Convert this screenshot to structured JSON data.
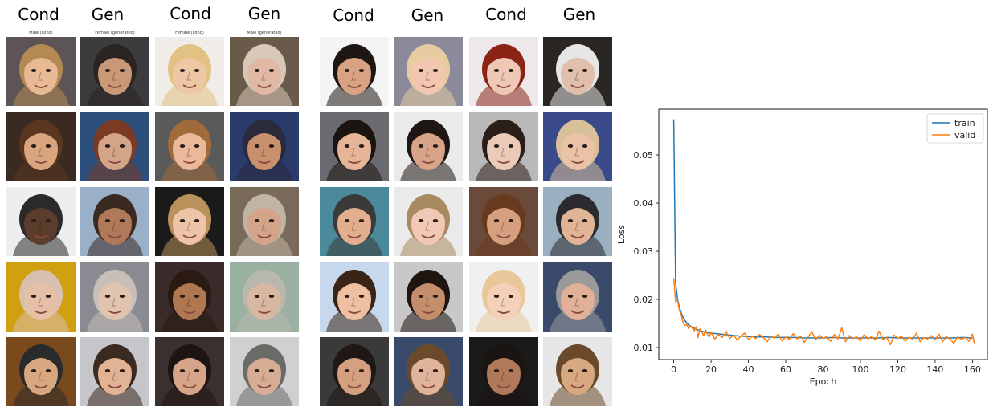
{
  "grids": [
    {
      "headers": [
        "Cond",
        "Gen",
        "Cond",
        "Gen"
      ],
      "subtitles": [
        "Male (cond)",
        "Female (generated)",
        "Female (cond)",
        "Male (generated)"
      ],
      "columns": [
        [
          {
            "skin": "#e7b994",
            "hair": "#b48a52",
            "bg": "#5c5456"
          },
          {
            "skin": "#d9a57e",
            "hair": "#5a3620",
            "bg": "#3a2a22"
          },
          {
            "skin": "#5b3d2c",
            "hair": "#2a2a2a",
            "bg": "#eeeeee"
          },
          {
            "skin": "#e6c0a6",
            "hair": "#d8c0b0",
            "bg": "#d0a010"
          },
          {
            "skin": "#d7a780",
            "hair": "#2b2b2b",
            "bg": "#7a4a1e"
          }
        ],
        [
          {
            "skin": "#c99877",
            "hair": "#2a2522",
            "bg": "#3c3b3e"
          },
          {
            "skin": "#d4a488",
            "hair": "#7a3a24",
            "bg": "#2b4f7a"
          },
          {
            "skin": "#b07a5a",
            "hair": "#3b2a22",
            "bg": "#9ab0c8"
          },
          {
            "skin": "#e0c4b0",
            "hair": "#c8c0b8",
            "bg": "#8a8a92"
          },
          {
            "skin": "#e2b294",
            "hair": "#3a2a22",
            "bg": "#c6c6ca"
          }
        ],
        [
          {
            "skin": "#eec7a4",
            "hair": "#e2c282",
            "bg": "#f0ece8"
          },
          {
            "skin": "#eab99a",
            "hair": "#a06a3a",
            "bg": "#5a5a5a"
          },
          {
            "skin": "#eec4a8",
            "hair": "#b8925a",
            "bg": "#1a1a1a"
          },
          {
            "skin": "#b07850",
            "hair": "#2a1a12",
            "bg": "#3a2a2a"
          },
          {
            "skin": "#d6a488",
            "hair": "#1e1512",
            "bg": "#3a3030"
          }
        ],
        [
          {
            "skin": "#e0b8a4",
            "hair": "#d8c8b8",
            "bg": "#6a5a4a"
          },
          {
            "skin": "#c8906c",
            "hair": "#2a2a3a",
            "bg": "#2a3a6a"
          },
          {
            "skin": "#d4a48a",
            "hair": "#c0b4a4",
            "bg": "#7a6a5a"
          },
          {
            "skin": "#d8b8a0",
            "hair": "#b8b8b0",
            "bg": "#9ab0a0"
          },
          {
            "skin": "#d6ac94",
            "hair": "#6a6a66",
            "bg": "#d0d0d2"
          }
        ]
      ]
    },
    {
      "headers": [
        "Cond",
        "Gen",
        "Cond",
        "Gen"
      ],
      "subtitles": [],
      "columns": [
        [
          {
            "skin": "#d9a283",
            "hair": "#1e1612",
            "bg": "#f4f4f4"
          },
          {
            "skin": "#e6b496",
            "hair": "#1c1410",
            "bg": "#6a6a70"
          },
          {
            "skin": "#e2ae8e",
            "hair": "#3a3a3a",
            "bg": "#4a8a9a"
          },
          {
            "skin": "#eebfa0",
            "hair": "#3a2418",
            "bg": "#c8d8ec"
          },
          {
            "skin": "#d4a080",
            "hair": "#201814",
            "bg": "#3a3a3a"
          }
        ],
        [
          {
            "skin": "#f2c6b0",
            "hair": "#e6cca0",
            "bg": "#8a8a9a"
          },
          {
            "skin": "#d8a488",
            "hair": "#1e1612",
            "bg": "#eaeaea"
          },
          {
            "skin": "#f0c8b4",
            "hair": "#a88a62",
            "bg": "#eaeaea"
          },
          {
            "skin": "#c48e6c",
            "hair": "#1e1410",
            "bg": "#c8c8c8"
          },
          {
            "skin": "#e0b49a",
            "hair": "#6a4a2a",
            "bg": "#3a4a6a"
          }
        ],
        [
          {
            "skin": "#eec8b4",
            "hair": "#8a2416",
            "bg": "#efe8ea"
          },
          {
            "skin": "#eccab8",
            "hair": "#2a1e18",
            "bg": "#b8b8b8"
          },
          {
            "skin": "#d6a080",
            "hair": "#6a3a1e",
            "bg": "#6a4a3a"
          },
          {
            "skin": "#f4d0b8",
            "hair": "#e8c89a",
            "bg": "#f0f0f0"
          },
          {
            "skin": "#b07a5a",
            "hair": "#1a1412",
            "bg": "#1a1a1a"
          }
        ],
        [
          {
            "skin": "#e0c0ac",
            "hair": "#e6e6e6",
            "bg": "#2a2622"
          },
          {
            "skin": "#eac2a6",
            "hair": "#d8c098",
            "bg": "#3a4a8a"
          },
          {
            "skin": "#e2b496",
            "hair": "#2a2a30",
            "bg": "#9ab0c0"
          },
          {
            "skin": "#e0b098",
            "hair": "#9a9a9a",
            "bg": "#3a4a6a"
          },
          {
            "skin": "#d8a880",
            "hair": "#6a4a2a",
            "bg": "#e6e6e6"
          }
        ]
      ]
    }
  ],
  "chart_data": {
    "type": "line",
    "xlabel": "Epoch",
    "ylabel": "Loss",
    "xlim": [
      -8,
      168
    ],
    "ylim": [
      0.0075,
      0.0595
    ],
    "xticks": [
      0,
      20,
      40,
      60,
      80,
      100,
      120,
      140,
      160
    ],
    "yticks": [
      0.01,
      0.02,
      0.03,
      0.04,
      0.05
    ],
    "legend": "top-right",
    "grid": false,
    "series": [
      {
        "name": "train",
        "color": "#1f77b4",
        "points": [
          [
            0,
            0.0574
          ],
          [
            1,
            0.0236
          ],
          [
            2,
            0.0202
          ],
          [
            3,
            0.0184
          ],
          [
            4,
            0.0172
          ],
          [
            5,
            0.0163
          ],
          [
            6,
            0.0156
          ],
          [
            7,
            0.0151
          ],
          [
            8,
            0.0147
          ],
          [
            10,
            0.0142
          ],
          [
            12,
            0.0138
          ],
          [
            15,
            0.0134
          ],
          [
            18,
            0.0131
          ],
          [
            20,
            0.013
          ],
          [
            25,
            0.0128
          ],
          [
            30,
            0.0126
          ],
          [
            35,
            0.0124
          ],
          [
            40,
            0.0123
          ],
          [
            45,
            0.0122
          ],
          [
            50,
            0.0122
          ],
          [
            55,
            0.0121
          ],
          [
            60,
            0.0121
          ],
          [
            65,
            0.0121
          ],
          [
            70,
            0.012
          ],
          [
            75,
            0.012
          ],
          [
            80,
            0.012
          ],
          [
            85,
            0.0121
          ],
          [
            90,
            0.012
          ],
          [
            95,
            0.012
          ],
          [
            100,
            0.012
          ],
          [
            105,
            0.012
          ],
          [
            110,
            0.012
          ],
          [
            115,
            0.0121
          ],
          [
            120,
            0.012
          ],
          [
            125,
            0.012
          ],
          [
            130,
            0.012
          ],
          [
            135,
            0.012
          ],
          [
            140,
            0.012
          ],
          [
            145,
            0.012
          ],
          [
            150,
            0.012
          ],
          [
            155,
            0.0121
          ],
          [
            160,
            0.012
          ]
        ]
      },
      {
        "name": "valid",
        "color": "#ff7f0e",
        "points": [
          [
            0,
            0.0244
          ],
          [
            1,
            0.0195
          ],
          [
            2,
            0.0199
          ],
          [
            3,
            0.0178
          ],
          [
            4,
            0.0168
          ],
          [
            5,
            0.0152
          ],
          [
            6,
            0.0146
          ],
          [
            7,
            0.0148
          ],
          [
            8,
            0.0139
          ],
          [
            9,
            0.0145
          ],
          [
            10,
            0.014
          ],
          [
            11,
            0.0135
          ],
          [
            12,
            0.0143
          ],
          [
            13,
            0.0121
          ],
          [
            14,
            0.0139
          ],
          [
            15,
            0.0132
          ],
          [
            16,
            0.0125
          ],
          [
            17,
            0.0137
          ],
          [
            18,
            0.0128
          ],
          [
            19,
            0.0122
          ],
          [
            20,
            0.0131
          ],
          [
            22,
            0.0118
          ],
          [
            24,
            0.0127
          ],
          [
            26,
            0.0121
          ],
          [
            28,
            0.0133
          ],
          [
            30,
            0.0119
          ],
          [
            32,
            0.0126
          ],
          [
            34,
            0.0116
          ],
          [
            36,
            0.0124
          ],
          [
            38,
            0.013
          ],
          [
            40,
            0.0117
          ],
          [
            42,
            0.0123
          ],
          [
            44,
            0.0119
          ],
          [
            46,
            0.0127
          ],
          [
            48,
            0.0121
          ],
          [
            50,
            0.0112
          ],
          [
            52,
            0.0124
          ],
          [
            54,
            0.012
          ],
          [
            56,
            0.0128
          ],
          [
            58,
            0.0114
          ],
          [
            60,
            0.0122
          ],
          [
            62,
            0.0117
          ],
          [
            64,
            0.0129
          ],
          [
            66,
            0.0118
          ],
          [
            68,
            0.0124
          ],
          [
            70,
            0.0111
          ],
          [
            72,
            0.0122
          ],
          [
            74,
            0.0133
          ],
          [
            76,
            0.0116
          ],
          [
            78,
            0.0126
          ],
          [
            80,
            0.0119
          ],
          [
            82,
            0.0123
          ],
          [
            84,
            0.0113
          ],
          [
            86,
            0.0127
          ],
          [
            88,
            0.0118
          ],
          [
            90,
            0.0141
          ],
          [
            92,
            0.0112
          ],
          [
            94,
            0.0125
          ],
          [
            96,
            0.0119
          ],
          [
            98,
            0.0122
          ],
          [
            100,
            0.0114
          ],
          [
            102,
            0.0127
          ],
          [
            104,
            0.0118
          ],
          [
            106,
            0.0123
          ],
          [
            108,
            0.0116
          ],
          [
            110,
            0.0134
          ],
          [
            112,
            0.0117
          ],
          [
            114,
            0.0121
          ],
          [
            116,
            0.0106
          ],
          [
            118,
            0.0126
          ],
          [
            120,
            0.0119
          ],
          [
            122,
            0.0124
          ],
          [
            124,
            0.0113
          ],
          [
            126,
            0.0122
          ],
          [
            128,
            0.0117
          ],
          [
            130,
            0.013
          ],
          [
            132,
            0.0112
          ],
          [
            134,
            0.0121
          ],
          [
            136,
            0.0118
          ],
          [
            138,
            0.0125
          ],
          [
            140,
            0.0116
          ],
          [
            142,
            0.0128
          ],
          [
            144,
            0.0112
          ],
          [
            146,
            0.0123
          ],
          [
            148,
            0.0118
          ],
          [
            150,
            0.0109
          ],
          [
            152,
            0.0122
          ],
          [
            154,
            0.0117
          ],
          [
            156,
            0.0121
          ],
          [
            158,
            0.0113
          ],
          [
            160,
            0.0128
          ],
          [
            161,
            0.0109
          ]
        ]
      }
    ]
  }
}
